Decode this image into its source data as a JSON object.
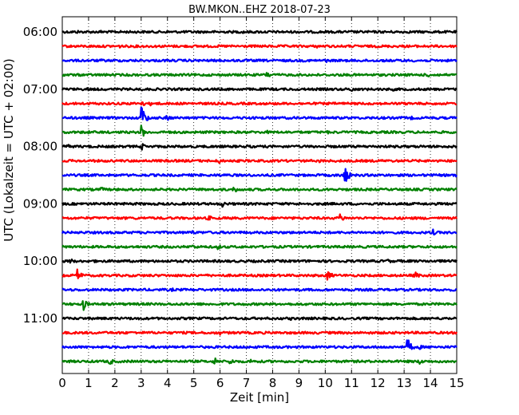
{
  "chart_data": {
    "type": "line",
    "title": "BW.MKON..EHZ 2018-07-23",
    "xlabel": "Zeit  [min]",
    "ylabel": "UTC (Lokalzeit = UTC + 02:00)",
    "xlim": [
      0,
      15
    ],
    "x_ticks": [
      "0",
      "1",
      "2",
      "3",
      "4",
      "5",
      "6",
      "7",
      "8",
      "9",
      "10",
      "11",
      "12",
      "13",
      "14",
      "15"
    ],
    "y_tick_labels": [
      "06:00",
      "07:00",
      "08:00",
      "09:00",
      "10:00",
      "11:00"
    ],
    "grid": "vertical-dotted",
    "row_minutes": 15,
    "start_time": "06:00",
    "row_colors": [
      "#000000",
      "#ff0000",
      "#0000ff",
      "#008000"
    ],
    "series": [
      {
        "values": [
          {
            "x": 0.6,
            "a": 2
          },
          {
            "x": 1.5,
            "a": 2
          },
          {
            "x": 4.6,
            "a": 2
          },
          {
            "x": 6.9,
            "a": 2
          }
        ]
      },
      {
        "values": [
          {
            "x": 2.2,
            "a": 2
          },
          {
            "x": 9.7,
            "a": 2
          }
        ]
      },
      {
        "values": [
          {
            "x": 1.5,
            "a": 2
          },
          {
            "x": 10.0,
            "a": 3
          },
          {
            "x": 12.9,
            "a": 2
          }
        ]
      },
      {
        "values": [
          {
            "x": 7.8,
            "a": 5
          },
          {
            "x": 10.5,
            "a": 2
          },
          {
            "x": 13.9,
            "a": 3
          }
        ]
      },
      {
        "values": [
          {
            "x": 1.0,
            "a": 2
          },
          {
            "x": 3.0,
            "a": 2
          },
          {
            "x": 9.1,
            "a": 2
          },
          {
            "x": 11.0,
            "a": 4
          },
          {
            "x": 12.6,
            "a": 2
          }
        ]
      },
      {
        "values": [
          {
            "x": 3.03,
            "a": 4
          },
          {
            "x": 3.4,
            "a": 3
          },
          {
            "x": 8.2,
            "a": 2
          }
        ]
      },
      {
        "values": [
          {
            "x": 3.03,
            "a": 16
          },
          {
            "x": 4.0,
            "a": 4
          },
          {
            "x": 7.6,
            "a": 2
          },
          {
            "x": 13.3,
            "a": 2
          }
        ]
      },
      {
        "values": [
          {
            "x": 1.0,
            "a": 2
          },
          {
            "x": 3.0,
            "a": 9
          },
          {
            "x": 4.0,
            "a": 3
          },
          {
            "x": 7.8,
            "a": 2
          },
          {
            "x": 10.1,
            "a": 2
          }
        ]
      },
      {
        "values": [
          {
            "x": 0.2,
            "a": 3
          },
          {
            "x": 3.05,
            "a": 4
          },
          {
            "x": 7.1,
            "a": 2
          }
        ]
      },
      {
        "values": [
          {
            "x": 1.5,
            "a": 2
          },
          {
            "x": 5.95,
            "a": 4
          },
          {
            "x": 9.8,
            "a": 2
          }
        ]
      },
      {
        "values": [
          {
            "x": 6.3,
            "a": 2
          },
          {
            "x": 10.6,
            "a": 3
          },
          {
            "x": 10.75,
            "a": 12
          },
          {
            "x": 14.9,
            "a": 3
          }
        ]
      },
      {
        "values": [
          {
            "x": 1.5,
            "a": 3
          },
          {
            "x": 6.55,
            "a": 4
          }
        ]
      },
      {
        "values": [
          {
            "x": 6.1,
            "a": 4
          },
          {
            "x": 9.8,
            "a": 2
          }
        ]
      },
      {
        "values": [
          {
            "x": 5.6,
            "a": 3
          },
          {
            "x": 10.55,
            "a": 7
          }
        ]
      },
      {
        "values": [
          {
            "x": 4.9,
            "a": 4
          },
          {
            "x": 14.1,
            "a": 4
          }
        ]
      },
      {
        "values": [
          {
            "x": 5.0,
            "a": 3
          },
          {
            "x": 5.9,
            "a": 4
          }
        ]
      },
      {
        "values": [
          {
            "x": 0.3,
            "a": 4
          },
          {
            "x": 1.2,
            "a": 2
          },
          {
            "x": 12.4,
            "a": 3
          }
        ]
      },
      {
        "values": [
          {
            "x": 0.6,
            "a": 8
          },
          {
            "x": 10.1,
            "a": 7
          },
          {
            "x": 13.4,
            "a": 6
          }
        ]
      },
      {
        "values": [
          {
            "x": 4.2,
            "a": 2
          }
        ]
      },
      {
        "values": [
          {
            "x": 0.8,
            "a": 8
          },
          {
            "x": 1.5,
            "a": 2
          }
        ]
      },
      {
        "values": [
          {
            "x": 2.7,
            "a": 2
          },
          {
            "x": 8.7,
            "a": 2
          }
        ]
      },
      {
        "values": [
          {
            "x": 6.0,
            "a": 3
          }
        ]
      },
      {
        "values": [
          {
            "x": 13.15,
            "a": 10
          },
          {
            "x": 13.6,
            "a": 3
          }
        ]
      },
      {
        "values": [
          {
            "x": 1.8,
            "a": 5
          },
          {
            "x": 5.8,
            "a": 5
          },
          {
            "x": 6.4,
            "a": 4
          },
          {
            "x": 7.2,
            "a": 3
          },
          {
            "x": 13.6,
            "a": 4
          }
        ]
      }
    ]
  }
}
